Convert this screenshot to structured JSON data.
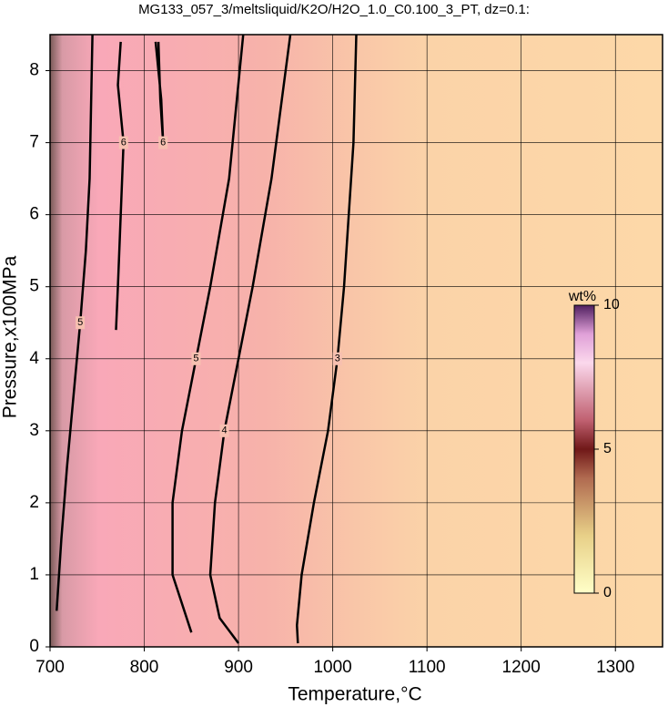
{
  "chart_data": {
    "type": "contour",
    "title": "MG133_057_3/meltsliquid/K2O/H2O_1.0_C0.100_3_PT, dz=0.1:",
    "x_label": "Temperature,°C",
    "y_label": "Pressure,x100MPa",
    "xlim": [
      700,
      1350
    ],
    "xticks": [
      700,
      800,
      900,
      1000,
      1100,
      1200,
      1300
    ],
    "ylim": [
      0,
      8.5
    ],
    "yticks": [
      0,
      1,
      2,
      3,
      4,
      5,
      6,
      7,
      8
    ],
    "grid": true,
    "colorbar": {
      "label": "wt%",
      "lim": [
        0,
        10
      ],
      "ticks": [
        0,
        5,
        10
      ]
    },
    "contours": [
      {
        "level": 3,
        "x": [
          963,
          962,
          967,
          980,
          995,
          1005,
          1012,
          1017,
          1022,
          1025
        ],
        "y": [
          0.05,
          0.3,
          1,
          2,
          3,
          4,
          5,
          6,
          7,
          8.5
        ]
      },
      {
        "level": 4,
        "x": [
          900,
          880,
          870,
          875,
          885,
          900,
          915,
          935,
          955
        ],
        "y": [
          0.05,
          0.4,
          1,
          2,
          3,
          4,
          5,
          6.5,
          8.5
        ]
      },
      {
        "level": 5,
        "x": [
          850,
          830,
          830,
          840,
          855,
          870,
          890,
          905
        ],
        "y": [
          0.2,
          1,
          2,
          3,
          4,
          5,
          6.5,
          8.5
        ]
      },
      {
        "level": 6,
        "x": [
          770,
          772,
          775,
          778,
          772,
          775
        ],
        "y": [
          4.4,
          5,
          6,
          7,
          7.8,
          8.4
        ]
      },
      {
        "level": 6,
        "x": [
          812,
          815,
          818,
          820,
          817,
          815
        ],
        "y": [
          8.4,
          8.0,
          7.6,
          7.0,
          7.6,
          8.4
        ]
      },
      {
        "level": 5,
        "x": [
          707,
          712,
          718,
          725,
          732,
          738,
          742,
          745
        ],
        "y": [
          0.5,
          1.5,
          2.5,
          3.5,
          4.5,
          5.5,
          6.5,
          8.5
        ]
      }
    ]
  }
}
